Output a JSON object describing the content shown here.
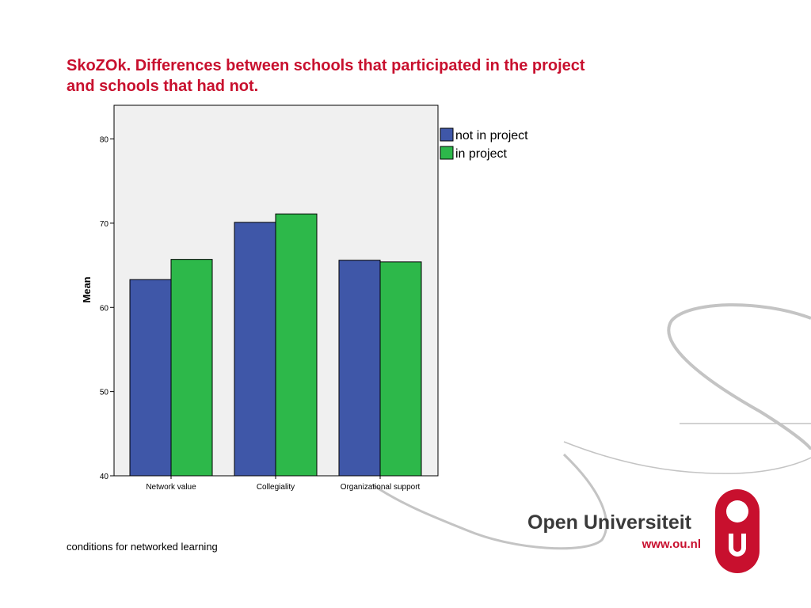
{
  "slide": {
    "title_line1": "SkoZOk. Differences between schools that participated in the project",
    "title_line2": "and schools that had not.",
    "footer": "conditions for networked learning"
  },
  "logo": {
    "name": "Open Universiteit",
    "url": "www.ou.nl"
  },
  "colors": {
    "title": "#c8102e",
    "series_not_in_project": "#3f57a8",
    "series_in_project": "#2db84a",
    "plot_background": "#f0f0f0"
  },
  "chart_data": {
    "type": "bar",
    "categories": [
      "Network value",
      "Collegiality",
      "Organizational support"
    ],
    "series": [
      {
        "name": "not in project",
        "values": [
          63.3,
          70.1,
          65.6
        ]
      },
      {
        "name": "in project",
        "values": [
          65.7,
          71.1,
          65.4
        ]
      }
    ],
    "xlabel": "",
    "ylabel": "Mean",
    "ylim": [
      40,
      84
    ],
    "yticks": [
      40,
      50,
      60,
      70,
      80
    ],
    "grid": false,
    "legend_position": "top-right"
  }
}
